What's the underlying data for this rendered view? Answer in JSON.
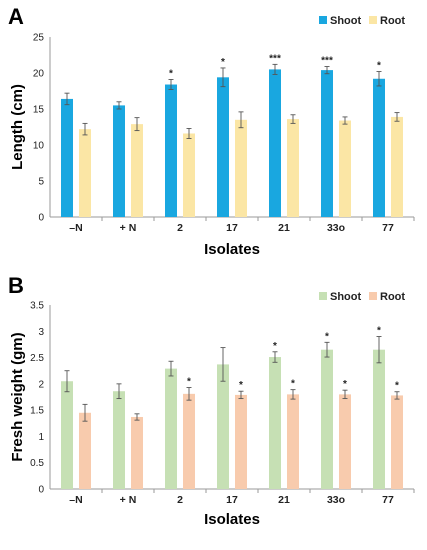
{
  "chart_data": [
    {
      "type": "bar",
      "panel_label": "A",
      "categories": [
        "–N",
        "+ N",
        "2",
        "17",
        "21",
        "33o",
        "77"
      ],
      "series": [
        {
          "name": "Shoot",
          "values": [
            16.4,
            15.5,
            18.4,
            19.4,
            20.5,
            20.4,
            19.2
          ],
          "errors": [
            0.8,
            0.5,
            0.7,
            1.3,
            0.7,
            0.5,
            1.0
          ],
          "sig": [
            "",
            "",
            "*",
            "*",
            "***",
            "***",
            "*"
          ],
          "color": "#19a7e0"
        },
        {
          "name": "Root",
          "values": [
            12.2,
            12.9,
            11.6,
            13.5,
            13.6,
            13.4,
            13.9
          ],
          "errors": [
            0.8,
            0.9,
            0.7,
            1.1,
            0.6,
            0.5,
            0.6
          ],
          "sig": [
            "",
            "",
            "",
            "",
            "",
            "",
            ""
          ],
          "color": "#fbe6a5"
        }
      ],
      "xlabel": "Isolates",
      "ylabel": "Length (cm)",
      "ylim": [
        0,
        25
      ],
      "yticks": [
        0,
        5,
        10,
        15,
        20,
        25
      ],
      "legend": "top-right",
      "grid": false
    },
    {
      "type": "bar",
      "panel_label": "B",
      "categories": [
        "–N",
        "+ N",
        "2",
        "17",
        "21",
        "33o",
        "77"
      ],
      "series": [
        {
          "name": "Shoot",
          "values": [
            2.05,
            1.86,
            2.29,
            2.37,
            2.51,
            2.65,
            2.65
          ],
          "errors": [
            0.2,
            0.14,
            0.14,
            0.32,
            0.1,
            0.14,
            0.25
          ],
          "sig": [
            "",
            "",
            "",
            "",
            "*",
            "*",
            "*"
          ],
          "color": "#c6e0b4"
        },
        {
          "name": "Root",
          "values": [
            1.45,
            1.37,
            1.81,
            1.79,
            1.8,
            1.8,
            1.78
          ],
          "errors": [
            0.16,
            0.06,
            0.12,
            0.07,
            0.09,
            0.08,
            0.07
          ],
          "sig": [
            "",
            "",
            "*",
            "*",
            "*",
            "*",
            "*"
          ],
          "color": "#f8cbad"
        }
      ],
      "xlabel": "Isolates",
      "ylabel": "Fresh weight (gm)",
      "ylim": [
        0,
        3.5
      ],
      "yticks": [
        "0",
        "0.5",
        "1",
        "1.5",
        "2",
        "2.5",
        "3",
        "3.5"
      ],
      "legend": "top-right",
      "grid": false
    }
  ]
}
